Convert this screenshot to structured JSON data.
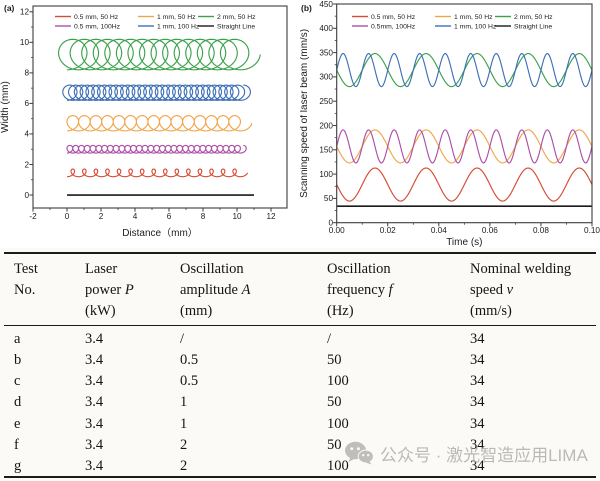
{
  "page": {
    "watermark": {
      "icon": "wechat-icon",
      "text": "公众号 · 激光智造应用LIMA"
    }
  },
  "chart_data": [
    {
      "type": "line",
      "panel": "(a)",
      "xlabel": "Distance（mm）",
      "ylabel": "Width (mm)",
      "xlim": [
        -2,
        12.94
      ],
      "ylim": [
        -0.85,
        12.38
      ],
      "xticks": [
        -2,
        0,
        2,
        4,
        6,
        8,
        10,
        12
      ],
      "xtick_labels": [
        "-2",
        "0",
        "2",
        "4",
        "6",
        "8",
        "10",
        "12"
      ],
      "xminors": [
        -1,
        1,
        3,
        5,
        7,
        9,
        11
      ],
      "yticks": [
        0,
        2,
        4,
        6,
        8,
        10,
        12
      ],
      "ytick_labels": [
        "0",
        "2",
        "4",
        "6",
        "8",
        "10",
        "12"
      ],
      "yminors": [
        1,
        3,
        5,
        7,
        9,
        11
      ],
      "grid": false,
      "legend_position": "top-inside",
      "legend": [
        {
          "label": "0.5 mm, 50 Hz",
          "color": "#d74a33"
        },
        {
          "label": "1 mm, 50 Hz",
          "color": "#f2a449"
        },
        {
          "label": "2 mm, 50 Hz",
          "color": "#3ba24b"
        },
        {
          "label": "0.5 mm, 100Hz",
          "color": "#ac4fa8"
        },
        {
          "label": "1 mm, 100 Hz",
          "color": "#3e70b7"
        },
        {
          "label": "Straight Line",
          "color": "#1a1a1a"
        }
      ],
      "series": [
        {
          "name": "2 mm, 50 Hz",
          "color": "#3ba24b",
          "kind": "trochoid",
          "radius_mm": 1.0,
          "center_y_mm": 9.2,
          "freq_hz": 50,
          "weld_speed_mm_s": 34,
          "duration_s": 0.305
        },
        {
          "name": "1 mm, 100 Hz",
          "color": "#3e70b7",
          "kind": "trochoid",
          "radius_mm": 0.5,
          "center_y_mm": 6.7,
          "freq_hz": 100,
          "weld_speed_mm_s": 34,
          "duration_s": 0.305
        },
        {
          "name": "1 mm, 50 Hz",
          "color": "#f2a449",
          "kind": "trochoid",
          "radius_mm": 0.5,
          "center_y_mm": 4.7,
          "freq_hz": 50,
          "weld_speed_mm_s": 34,
          "duration_s": 0.305
        },
        {
          "name": "0.5 mm, 100Hz",
          "color": "#ac4fa8",
          "kind": "trochoid",
          "radius_mm": 0.25,
          "center_y_mm": 3.0,
          "freq_hz": 100,
          "weld_speed_mm_s": 34,
          "duration_s": 0.305
        },
        {
          "name": "0.5 mm, 50 Hz",
          "color": "#d74a33",
          "kind": "trochoid",
          "radius_mm": 0.25,
          "center_y_mm": 1.45,
          "freq_hz": 50,
          "weld_speed_mm_s": 34,
          "duration_s": 0.305
        },
        {
          "name": "Straight Line",
          "color": "#1a1a1a",
          "kind": "hline",
          "y": 0,
          "x_start": 0,
          "x_end": 11
        }
      ]
    },
    {
      "type": "line",
      "panel": "(b)",
      "xlabel": "Time (s)",
      "ylabel": "Scanning speed of laser beam (mm/s)",
      "xlim": [
        0,
        0.1
      ],
      "ylim": [
        0,
        450
      ],
      "xticks": [
        0,
        0.02,
        0.04,
        0.06,
        0.08,
        0.1
      ],
      "xtick_labels": [
        "0.00",
        "0.02",
        "0.04",
        "0.06",
        "0.08",
        "0.10"
      ],
      "xminors": [
        0.01,
        0.03,
        0.05,
        0.07,
        0.09
      ],
      "yticks": [
        0,
        50,
        100,
        150,
        200,
        250,
        300,
        350,
        400,
        450
      ],
      "ytick_labels": [
        "0",
        "50",
        "100",
        "150",
        "200",
        "250",
        "300",
        "350",
        "400",
        "450"
      ],
      "yminors": [
        25,
        75,
        125,
        175,
        225,
        275,
        325,
        375,
        425
      ],
      "grid": false,
      "legend_position": "top-inside",
      "legend": [
        {
          "label": "0.5 mm, 50 Hz",
          "color": "#d74a33"
        },
        {
          "label": "1 mm, 50 Hz",
          "color": "#f2a449"
        },
        {
          "label": "2 mm, 50 Hz",
          "color": "#3ba24b"
        },
        {
          "label": "0.5mm, 100Hz",
          "color": "#ac4fa8"
        },
        {
          "label": "1 mm, 100 Hz",
          "color": "#3e70b7"
        },
        {
          "label": "Straight Line",
          "color": "#1a1a1a"
        }
      ],
      "series": [
        {
          "name": "2 mm, 50 Hz",
          "color": "#3ba24b",
          "kind": "sine",
          "mean": 314,
          "amp": 34,
          "freq_hz": 50,
          "orient": -1
        },
        {
          "name": "1 mm, 100 Hz",
          "color": "#3e70b7",
          "kind": "sine",
          "mean": 314,
          "amp": 34,
          "freq_hz": 100,
          "orient": 1
        },
        {
          "name": "1 mm, 50 Hz",
          "color": "#f2a449",
          "kind": "sine",
          "mean": 157,
          "amp": 34,
          "freq_hz": 50,
          "orient": -1
        },
        {
          "name": "0.5mm, 100Hz",
          "color": "#ac4fa8",
          "kind": "sine",
          "mean": 157,
          "amp": 34,
          "freq_hz": 100,
          "orient": 1
        },
        {
          "name": "0.5 mm, 50 Hz",
          "color": "#d74a33",
          "kind": "sine",
          "mean": 78.5,
          "amp": 34,
          "freq_hz": 50,
          "orient": -1
        },
        {
          "name": "Straight Line",
          "color": "#1a1a1a",
          "kind": "hline",
          "y": 34,
          "x_start": 0,
          "x_end": 0.1
        }
      ]
    }
  ],
  "table": {
    "headers": [
      {
        "lines": [
          "Test",
          "No."
        ]
      },
      {
        "lines": [
          "Laser",
          "power *P*",
          "(kW)"
        ]
      },
      {
        "lines": [
          "Oscillation",
          "amplitude *A*",
          "(mm)"
        ]
      },
      {
        "lines": [
          "Oscillation",
          "frequency *f*",
          "(Hz)"
        ]
      },
      {
        "lines": [
          "Nominal welding",
          "speed *v*",
          "(mm/s)"
        ]
      }
    ],
    "rows": [
      [
        "a",
        "3.4",
        "/",
        "/",
        "34"
      ],
      [
        "b",
        "3.4",
        "0.5",
        "50",
        "34"
      ],
      [
        "c",
        "3.4",
        "0.5",
        "100",
        "34"
      ],
      [
        "d",
        "3.4",
        "1",
        "50",
        "34"
      ],
      [
        "e",
        "3.4",
        "1",
        "100",
        "34"
      ],
      [
        "f",
        "3.4",
        "2",
        "50",
        "34"
      ],
      [
        "g",
        "3.4",
        "2",
        "100",
        "34"
      ]
    ]
  }
}
